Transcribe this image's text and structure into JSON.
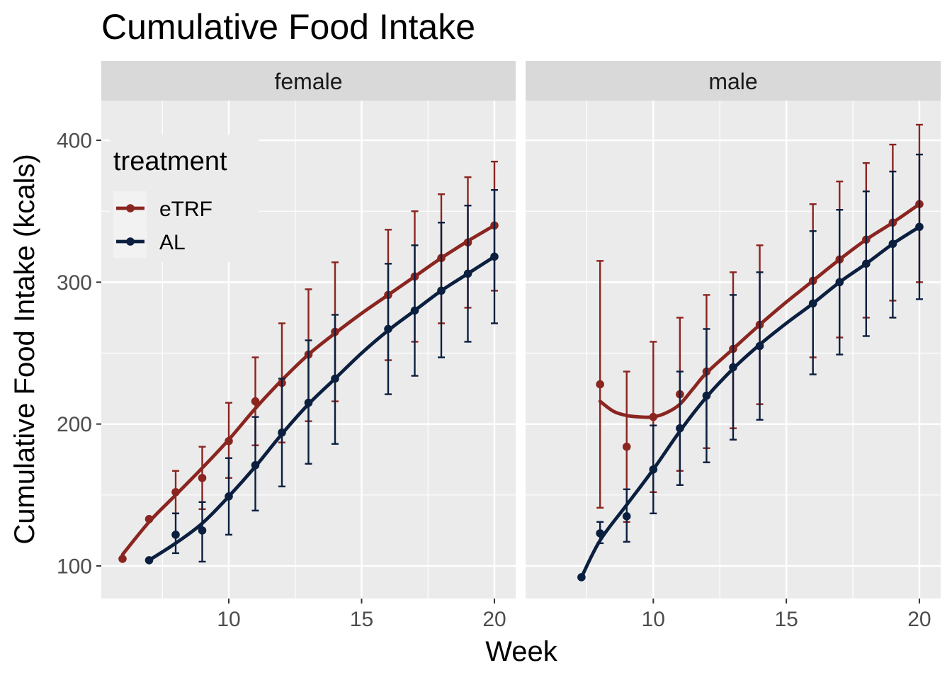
{
  "chart_data": {
    "type": "line",
    "title": "Cumulative Food Intake",
    "xlabel": "Week",
    "ylabel": "Cumulative Food Intake (kcals)",
    "xlim": [
      5.2,
      20.8
    ],
    "ylim": [
      77,
      428
    ],
    "x_ticks": [
      10,
      15,
      20
    ],
    "y_ticks": [
      100,
      200,
      300,
      400
    ],
    "legend": {
      "title": "treatment",
      "placement": "inside-top-left",
      "entries": [
        "eTRF",
        "AL"
      ]
    },
    "colors": {
      "eTRF": "#8b2520",
      "AL": "#0b1f3f",
      "panel": "#ebebeb",
      "strip": "#d9d9d9",
      "grid": "#ffffff"
    },
    "panels": [
      {
        "label": "female",
        "series": [
          {
            "name": "eTRF",
            "x": [
              6,
              7,
              8,
              9,
              10,
              11,
              12,
              13,
              14,
              16,
              17,
              18,
              19,
              20
            ],
            "y": [
              105,
              133,
              152,
              162,
              188,
              216,
              229,
              249,
              265,
              291,
              304,
              317,
              328,
              340
            ],
            "ymin": [
              null,
              null,
              137,
              140,
              162,
              185,
              187,
              202,
              216,
              245,
              258,
              271,
              282,
              294
            ],
            "ymax": [
              null,
              null,
              167,
              184,
              215,
              247,
              271,
              295,
              314,
              337,
              350,
              362,
              374,
              385
            ],
            "smooth_x": [
              6,
              7,
              8,
              9,
              10,
              11,
              12,
              13,
              14,
              15,
              16,
              17,
              18,
              19,
              20
            ],
            "smooth_y": [
              108,
              131,
              150,
              169,
              189,
              211,
              231,
              249,
              264,
              278,
              291,
              304,
              317,
              329,
              340
            ]
          },
          {
            "name": "AL",
            "x": [
              7,
              8,
              9,
              10,
              11,
              12,
              13,
              14,
              16,
              17,
              18,
              19,
              20
            ],
            "y": [
              104,
              122,
              125,
              149,
              171,
              194,
              215,
              232,
              267,
              280,
              294,
              306,
              318
            ],
            "ymin": [
              null,
              109,
              103,
              122,
              139,
              156,
              172,
              186,
              221,
              234,
              247,
              258,
              271
            ],
            "ymax": [
              null,
              137,
              145,
              176,
              205,
              232,
              259,
              277,
              313,
              326,
              342,
              354,
              365
            ],
            "smooth_x": [
              7,
              8,
              9,
              10,
              11,
              12,
              13,
              14,
              15,
              16,
              17,
              18,
              19,
              20
            ],
            "smooth_y": [
              104,
              116,
              130,
              149,
              170,
              193,
              214,
              232,
              250,
              266,
              280,
              294,
              306,
              318
            ]
          }
        ]
      },
      {
        "label": "male",
        "series": [
          {
            "name": "eTRF",
            "x": [
              8,
              9,
              10,
              11,
              12,
              13,
              14,
              16,
              17,
              18,
              19,
              20
            ],
            "y": [
              228,
              184,
              205,
              221,
              237,
              253,
              270,
              301,
              316,
              330,
              342,
              355
            ],
            "ymin": [
              141,
              131,
              152,
              167,
              183,
              197,
              214,
              247,
              261,
              275,
              287,
              300
            ],
            "ymax": [
              315,
              237,
              258,
              275,
              291,
              307,
              326,
              355,
              371,
              384,
              397,
              411
            ],
            "smooth_x": [
              8,
              8.5,
              9,
              9.5,
              10,
              10.5,
              11,
              11.5,
              12,
              13,
              14,
              15,
              16,
              17,
              18,
              19,
              20
            ],
            "smooth_y": [
              216,
              209,
              206,
              205,
              205,
              208,
              214,
              225,
              236,
              253,
              270,
              286,
              301,
              316,
              330,
              342,
              355
            ]
          },
          {
            "name": "AL",
            "x": [
              7.3,
              8,
              9,
              10,
              11,
              12,
              13,
              14,
              16,
              17,
              18,
              19,
              20
            ],
            "y": [
              92,
              123,
              135,
              168,
              197,
              220,
              240,
              255,
              285,
              300,
              313,
              327,
              339
            ],
            "ymin": [
              null,
              116,
              117,
              137,
              157,
              173,
              189,
              203,
              235,
              249,
              262,
              275,
              288
            ],
            "ymax": [
              null,
              131,
              154,
              199,
              237,
              267,
              291,
              307,
              336,
              351,
              364,
              378,
              390
            ],
            "smooth_x": [
              7.3,
              8,
              9,
              10,
              11,
              12,
              13,
              14,
              15,
              16,
              17,
              18,
              19,
              20
            ],
            "smooth_y": [
              92,
              118,
              143,
              168,
              195,
              219,
              239,
              256,
              271,
              285,
              300,
              313,
              327,
              339
            ]
          }
        ]
      }
    ]
  }
}
